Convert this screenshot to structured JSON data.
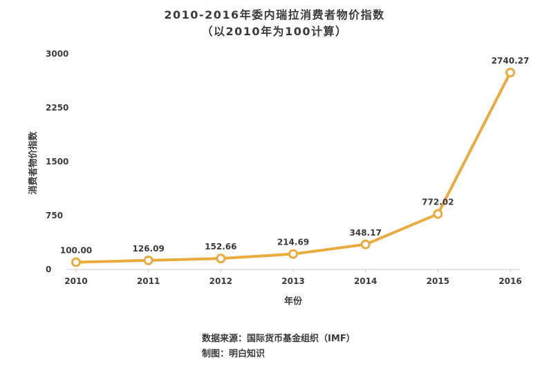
{
  "chart_data": {
    "type": "line",
    "title": "2010-2016年委内瑞拉消费者物价指数",
    "subtitle": "（以2010年为100计算）",
    "xlabel": "年份",
    "ylabel": "消费者物价指数",
    "x": [
      "2010",
      "2011",
      "2012",
      "2013",
      "2014",
      "2015",
      "2016"
    ],
    "values": [
      100.0,
      126.09,
      152.66,
      214.69,
      348.17,
      772.02,
      2740.27
    ],
    "data_labels": [
      "100.00",
      "126.09",
      "152.66",
      "214.69",
      "348.17",
      "772.02",
      "2740.27"
    ],
    "ylim": [
      0,
      3000
    ],
    "yticks": [
      "0",
      "750",
      "1500",
      "2250",
      "3000"
    ],
    "grid": false,
    "legend": "none",
    "line_color": "#EBAA3C"
  },
  "footer": {
    "source": "数据来源：国际货币基金组织（IMF）",
    "credit": "制图：明白知识"
  }
}
